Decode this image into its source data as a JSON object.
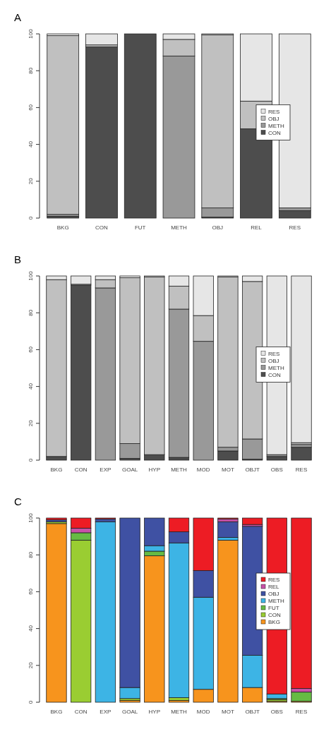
{
  "chart_data": [
    {
      "type": "bar",
      "title": "A",
      "stacked": true,
      "legend": "right",
      "categories": [
        "BKG",
        "CON",
        "FUT",
        "METH",
        "OBJ",
        "REL",
        "RES"
      ],
      "ylim": [
        0,
        100
      ],
      "yticks": [
        0,
        20,
        40,
        60,
        80,
        100
      ],
      "series": [
        {
          "name": "CON",
          "color": "#4d4d4d",
          "values": [
            1,
            93,
            100,
            0,
            0.5,
            48.5,
            4
          ]
        },
        {
          "name": "METH",
          "color": "#999999",
          "values": [
            1,
            0,
            0,
            88,
            5,
            0,
            1.5
          ]
        },
        {
          "name": "OBJ",
          "color": "#c0c0c0",
          "values": [
            97,
            1,
            0,
            9,
            94,
            15,
            0
          ]
        },
        {
          "name": "RES",
          "color": "#e6e6e6",
          "values": [
            1,
            6,
            0,
            3,
            0.5,
            36.5,
            94.5
          ]
        }
      ]
    },
    {
      "type": "bar",
      "title": "B",
      "stacked": true,
      "legend": "right",
      "categories": [
        "BKG",
        "CON",
        "EXP",
        "GOAL",
        "HYP",
        "METH",
        "MOD",
        "MOT",
        "OBJT",
        "OBS",
        "RES"
      ],
      "ylim": [
        0,
        100
      ],
      "yticks": [
        0,
        20,
        40,
        60,
        80,
        100
      ],
      "series": [
        {
          "name": "CON",
          "color": "#4d4d4d",
          "values": [
            2,
            95,
            0,
            1,
            3,
            1.5,
            0,
            5,
            0.5,
            2,
            7
          ]
        },
        {
          "name": "METH",
          "color": "#999999",
          "values": [
            0,
            0,
            93.5,
            8,
            0,
            80.5,
            64.5,
            2,
            11,
            1,
            1.5
          ]
        },
        {
          "name": "OBJ",
          "color": "#c0c0c0",
          "values": [
            96,
            0.5,
            4.5,
            90,
            96.5,
            12.5,
            14,
            92.5,
            85.5,
            0,
            1
          ]
        },
        {
          "name": "RES",
          "color": "#e6e6e6",
          "values": [
            2,
            4.5,
            2,
            1,
            0.5,
            5.5,
            21.5,
            0.5,
            3,
            97,
            90.5
          ]
        }
      ]
    },
    {
      "type": "bar",
      "title": "C",
      "stacked": true,
      "legend": "right",
      "categories": [
        "BKG",
        "CON",
        "EXP",
        "GOAL",
        "HYP",
        "METH",
        "MOD",
        "MOT",
        "OBJT",
        "OBS",
        "RES"
      ],
      "ylim": [
        0,
        100
      ],
      "yticks": [
        0,
        20,
        40,
        60,
        80,
        100
      ],
      "series": [
        {
          "name": "BKG",
          "color": "#f7941d",
          "values": [
            97,
            0,
            0,
            1,
            79.5,
            1,
            7,
            88,
            8,
            0.5,
            0.5
          ]
        },
        {
          "name": "CON",
          "color": "#9acd32",
          "values": [
            1,
            88,
            0,
            1,
            0,
            1.5,
            0,
            0,
            0,
            1,
            0
          ]
        },
        {
          "name": "FUT",
          "color": "#66bb44",
          "values": [
            0,
            4,
            0,
            0,
            2.5,
            0,
            0,
            0,
            0,
            0.5,
            5
          ]
        },
        {
          "name": "METH",
          "color": "#3db4e5",
          "values": [
            0,
            0,
            98,
            6,
            3,
            84,
            50,
            1.5,
            17.5,
            2.5,
            null
          ]
        },
        {
          "name": "OBJ",
          "color": "#3f51a3",
          "values": [
            1,
            0,
            1.5,
            92,
            15,
            6,
            14.5,
            8.5,
            70,
            null,
            null
          ]
        },
        {
          "name": "REL",
          "color": "#c850a8",
          "values": [
            0,
            2.5,
            0,
            0,
            0,
            0,
            0,
            1.5,
            1,
            0,
            2
          ]
        },
        {
          "name": "RES",
          "color": "#ed1c24",
          "values": [
            1,
            5.5,
            0.5,
            0,
            0,
            7.5,
            28.5,
            0.5,
            3.5,
            95.5,
            92.5
          ]
        }
      ]
    }
  ]
}
